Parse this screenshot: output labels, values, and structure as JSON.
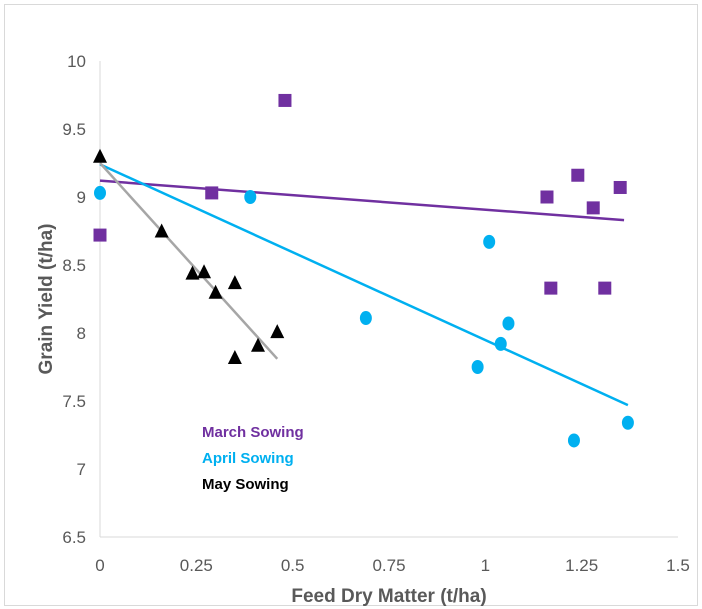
{
  "chart_data": {
    "type": "scatter",
    "xlabel": "Feed Dry Matter (t/ha)",
    "ylabel": "Grain Yield (t/ha)",
    "xlim": [
      0,
      1.5
    ],
    "ylim": [
      6.5,
      10
    ],
    "x_ticks": [
      "0",
      "0.25",
      "0.5",
      "0.75",
      "1",
      "1.25",
      "1.5"
    ],
    "y_ticks": [
      "6.5",
      "7",
      "7.5",
      "8",
      "8.5",
      "9",
      "9.5",
      "10"
    ],
    "grid": false,
    "legend_position": "lower-left",
    "series": [
      {
        "name": "March Sowing",
        "color": "#7030a0",
        "marker": "square",
        "points": [
          [
            0.0,
            8.72
          ],
          [
            0.29,
            9.03
          ],
          [
            0.48,
            9.71
          ],
          [
            1.16,
            9.0
          ],
          [
            1.17,
            8.33
          ],
          [
            1.24,
            9.16
          ],
          [
            1.28,
            8.92
          ],
          [
            1.31,
            8.33
          ],
          [
            1.35,
            9.07
          ]
        ],
        "trendline": [
          [
            0.0,
            9.12
          ],
          [
            1.36,
            8.83
          ]
        ]
      },
      {
        "name": "April Sowing",
        "color": "#00b0f0",
        "marker": "circle",
        "points": [
          [
            0.0,
            9.03
          ],
          [
            0.39,
            9.0
          ],
          [
            0.69,
            8.11
          ],
          [
            0.98,
            7.75
          ],
          [
            1.01,
            8.67
          ],
          [
            1.04,
            7.92
          ],
          [
            1.06,
            8.07
          ],
          [
            1.23,
            7.21
          ],
          [
            1.37,
            7.34
          ]
        ],
        "trendline": [
          [
            0.0,
            9.24
          ],
          [
            1.37,
            7.47
          ]
        ]
      },
      {
        "name": "May Sowing",
        "color": "#000000",
        "marker": "triangle",
        "points": [
          [
            0.0,
            9.3
          ],
          [
            0.16,
            8.75
          ],
          [
            0.24,
            8.44
          ],
          [
            0.27,
            8.45
          ],
          [
            0.3,
            8.3
          ],
          [
            0.35,
            8.37
          ],
          [
            0.35,
            7.82
          ],
          [
            0.41,
            7.91
          ],
          [
            0.46,
            8.01
          ]
        ],
        "trendline": [
          [
            0.0,
            9.25
          ],
          [
            0.46,
            7.81
          ]
        ],
        "trendline_color": "#a6a6a6"
      }
    ]
  }
}
